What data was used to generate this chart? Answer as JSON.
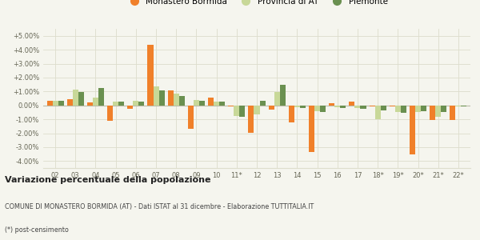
{
  "years": [
    "02",
    "03",
    "04",
    "05",
    "06",
    "07",
    "08",
    "09",
    "10",
    "11*",
    "12",
    "13",
    "14",
    "15",
    "16",
    "17",
    "18*",
    "19*",
    "20*",
    "21*",
    "22*"
  ],
  "monastero": [
    0.3,
    0.45,
    0.2,
    -1.1,
    -0.25,
    4.35,
    1.05,
    -1.7,
    0.55,
    -0.05,
    -1.95,
    -0.3,
    -1.25,
    -3.35,
    0.15,
    0.25,
    -0.05,
    -0.1,
    -3.55,
    -1.05,
    -1.05
  ],
  "provincia": [
    0.35,
    1.15,
    0.55,
    0.25,
    0.3,
    1.35,
    0.85,
    0.4,
    0.25,
    -0.75,
    -0.65,
    0.95,
    -0.15,
    -0.4,
    -0.15,
    -0.2,
    -1.0,
    -0.5,
    -0.45,
    -0.85,
    -0.1
  ],
  "piemonte": [
    0.3,
    0.95,
    1.25,
    0.25,
    0.25,
    1.05,
    0.65,
    0.35,
    0.25,
    -0.85,
    0.35,
    1.45,
    -0.2,
    -0.5,
    -0.2,
    -0.25,
    -0.35,
    -0.55,
    -0.4,
    -0.5,
    -0.05
  ],
  "color_monastero": "#f0802a",
  "color_provincia": "#c8d898",
  "color_piemonte": "#6a9050",
  "bg_color": "#f5f5ee",
  "grid_color": "#ddddcc",
  "ylim": [
    -4.5,
    5.5
  ],
  "yticks": [
    -4.0,
    -3.0,
    -2.0,
    -1.0,
    0.0,
    1.0,
    2.0,
    3.0,
    4.0,
    5.0
  ],
  "ytick_labels": [
    "-4.00%",
    "-3.00%",
    "-2.00%",
    "-1.00%",
    "0.00%",
    "+1.00%",
    "+2.00%",
    "+3.00%",
    "+4.00%",
    "+5.00%"
  ],
  "title_bold": "Variazione percentuale della popolazione",
  "subtitle": "COMUNE DI MONASTERO BORMIDA (AT) - Dati ISTAT al 31 dicembre - Elaborazione TUTTITALIA.IT",
  "footnote": "(*) post-censimento",
  "legend_labels": [
    "Monastero Bormida",
    "Provincia di AT",
    "Piemonte"
  ]
}
